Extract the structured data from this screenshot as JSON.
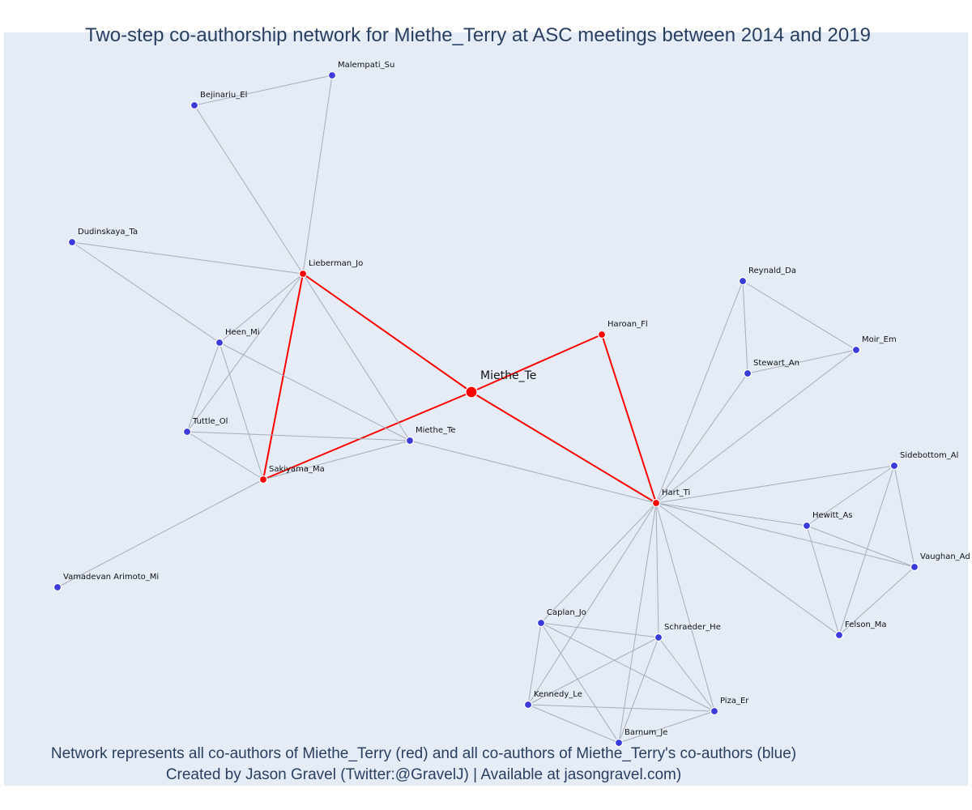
{
  "title": "Two-step co-authorship network for Miethe_Terry at ASC meetings between 2014 and 2019",
  "footer": {
    "line1": "Network represents all co-authors of Miethe_Terry (red) and all co-authors of Miethe_Terry's co-authors (blue)",
    "line2": "Created by Jason Gravel (Twitter:@GravelJ) | Available at jasongravel.com)"
  },
  "colors": {
    "background": "#e5ecf6",
    "coauthor": "#ff0000",
    "second_step": "#3b3bd9",
    "edge": "#a9acba",
    "text": "#2a3f5f"
  },
  "nodes": [
    {
      "id": "center",
      "label": "Miethe_Te",
      "group": "center"
    },
    {
      "id": "lieberman",
      "label": "Lieberman_Jo",
      "group": "coauthor"
    },
    {
      "id": "haroan",
      "label": "Haroan_Fl",
      "group": "coauthor"
    },
    {
      "id": "sakiyama",
      "label": "Sakiyama_Ma",
      "group": "coauthor"
    },
    {
      "id": "hart",
      "label": "Hart_Ti",
      "group": "coauthor"
    },
    {
      "id": "malempati",
      "label": "Malempati_Su",
      "group": "second"
    },
    {
      "id": "bejinariu",
      "label": "Bejinariu_El",
      "group": "second"
    },
    {
      "id": "dudinskaya",
      "label": "Dudinskaya_Ta",
      "group": "second"
    },
    {
      "id": "heen",
      "label": "Heen_Mi",
      "group": "second"
    },
    {
      "id": "tuttle",
      "label": "Tuttle_Ol",
      "group": "second"
    },
    {
      "id": "miethe2",
      "label": "Miethe_Te",
      "group": "second"
    },
    {
      "id": "vamadevan",
      "label": "Vamadevan Arimoto_Mi",
      "group": "second"
    },
    {
      "id": "reynald",
      "label": "Reynald_Da",
      "group": "second"
    },
    {
      "id": "moir",
      "label": "Moir_Em",
      "group": "second"
    },
    {
      "id": "stewart",
      "label": "Stewart_An",
      "group": "second"
    },
    {
      "id": "sidebottom",
      "label": "Sidebottom_Al",
      "group": "second"
    },
    {
      "id": "hewitt",
      "label": "Hewitt_As",
      "group": "second"
    },
    {
      "id": "vaughan",
      "label": "Vaughan_Ad",
      "group": "second"
    },
    {
      "id": "felson",
      "label": "Felson_Ma",
      "group": "second"
    },
    {
      "id": "caplan",
      "label": "Caplan_Jo",
      "group": "second"
    },
    {
      "id": "schraeder",
      "label": "Schraeder_He",
      "group": "second"
    },
    {
      "id": "kennedy",
      "label": "Kennedy_Le",
      "group": "second"
    },
    {
      "id": "piza",
      "label": "Piza_Er",
      "group": "second"
    },
    {
      "id": "barnum",
      "label": "Barnum_Je",
      "group": "second"
    }
  ],
  "edges": [
    [
      "center",
      "lieberman"
    ],
    [
      "center",
      "haroan"
    ],
    [
      "center",
      "sakiyama"
    ],
    [
      "center",
      "hart"
    ],
    [
      "lieberman",
      "sakiyama"
    ],
    [
      "haroan",
      "hart"
    ],
    [
      "malempati",
      "bejinariu"
    ],
    [
      "malempati",
      "lieberman"
    ],
    [
      "bejinariu",
      "lieberman"
    ],
    [
      "dudinskaya",
      "lieberman"
    ],
    [
      "dudinskaya",
      "heen"
    ],
    [
      "lieberman",
      "heen"
    ],
    [
      "lieberman",
      "tuttle"
    ],
    [
      "lieberman",
      "miethe2"
    ],
    [
      "heen",
      "tuttle"
    ],
    [
      "heen",
      "sakiyama"
    ],
    [
      "heen",
      "miethe2"
    ],
    [
      "tuttle",
      "sakiyama"
    ],
    [
      "tuttle",
      "miethe2"
    ],
    [
      "sakiyama",
      "miethe2"
    ],
    [
      "sakiyama",
      "vamadevan"
    ],
    [
      "miethe2",
      "hart"
    ],
    [
      "reynald",
      "stewart"
    ],
    [
      "reynald",
      "moir"
    ],
    [
      "reynald",
      "hart"
    ],
    [
      "stewart",
      "moir"
    ],
    [
      "stewart",
      "hart"
    ],
    [
      "moir",
      "hart"
    ],
    [
      "sidebottom",
      "hart"
    ],
    [
      "sidebottom",
      "hewitt"
    ],
    [
      "sidebottom",
      "vaughan"
    ],
    [
      "sidebottom",
      "felson"
    ],
    [
      "hewitt",
      "hart"
    ],
    [
      "hewitt",
      "vaughan"
    ],
    [
      "hewitt",
      "felson"
    ],
    [
      "vaughan",
      "hart"
    ],
    [
      "vaughan",
      "felson"
    ],
    [
      "felson",
      "hart"
    ],
    [
      "caplan",
      "hart"
    ],
    [
      "caplan",
      "schraeder"
    ],
    [
      "caplan",
      "kennedy"
    ],
    [
      "caplan",
      "piza"
    ],
    [
      "caplan",
      "barnum"
    ],
    [
      "schraeder",
      "hart"
    ],
    [
      "schraeder",
      "kennedy"
    ],
    [
      "schraeder",
      "piza"
    ],
    [
      "schraeder",
      "barnum"
    ],
    [
      "kennedy",
      "hart"
    ],
    [
      "kennedy",
      "piza"
    ],
    [
      "kennedy",
      "barnum"
    ],
    [
      "piza",
      "hart"
    ],
    [
      "piza",
      "barnum"
    ],
    [
      "barnum",
      "hart"
    ]
  ]
}
